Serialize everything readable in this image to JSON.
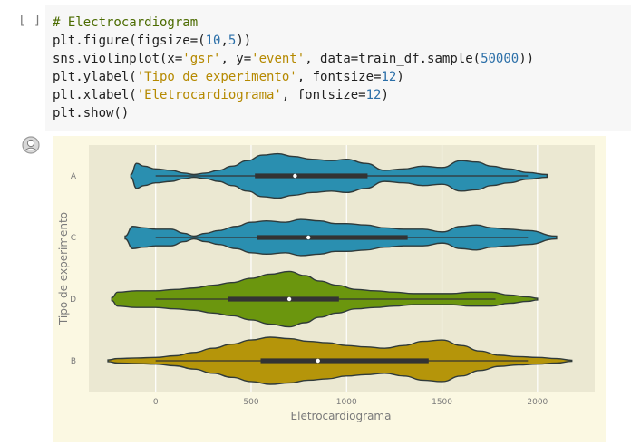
{
  "cell": {
    "prompt": "[ ]",
    "code": [
      [
        {
          "t": "# Electrocardiogram",
          "c": "cm-text"
        }
      ],
      [
        {
          "t": "plt.figure(figsize=(",
          "c": ""
        },
        {
          "t": "10",
          "c": "num2"
        },
        {
          "t": ",",
          "c": ""
        },
        {
          "t": "5",
          "c": "num2"
        },
        {
          "t": "))",
          "c": ""
        }
      ],
      [
        {
          "t": "sns.violinplot(x=",
          "c": ""
        },
        {
          "t": "'gsr'",
          "c": "str-tan"
        },
        {
          "t": ", y=",
          "c": ""
        },
        {
          "t": "'event'",
          "c": "str-tan"
        },
        {
          "t": ", data=train_df.sample(",
          "c": ""
        },
        {
          "t": "50000",
          "c": "num2"
        },
        {
          "t": "))",
          "c": ""
        }
      ],
      [
        {
          "t": "plt.ylabel(",
          "c": ""
        },
        {
          "t": "'Tipo de experimento'",
          "c": "str-tan"
        },
        {
          "t": ", fontsize=",
          "c": ""
        },
        {
          "t": "12",
          "c": "num2"
        },
        {
          "t": ")",
          "c": ""
        }
      ],
      [
        {
          "t": "plt.xlabel(",
          "c": ""
        },
        {
          "t": "'Eletrocardiograma'",
          "c": "str-tan"
        },
        {
          "t": ", fontsize=",
          "c": ""
        },
        {
          "t": "12",
          "c": "num2"
        },
        {
          "t": ")",
          "c": ""
        }
      ],
      [
        {
          "t": "plt.show()",
          "c": ""
        }
      ]
    ]
  },
  "output_icon": "output-avatar-icon",
  "chart_data": {
    "type": "violin",
    "xlabel": "Eletrocardiograma",
    "ylabel": "Tipo de experimento",
    "xlim": [
      -350,
      2300
    ],
    "xticks": [
      0,
      500,
      1000,
      1500,
      2000
    ],
    "grid": true,
    "categories": [
      "A",
      "C",
      "D",
      "B"
    ],
    "series": [
      {
        "name": "A",
        "color": "#2a8fb0",
        "whisker": [
          0,
          1950
        ],
        "q1": 520,
        "median": 730,
        "q3": 1110,
        "density": [
          [
            -130,
            0.05
          ],
          [
            -100,
            0.45
          ],
          [
            -60,
            0.35
          ],
          [
            0,
            0.25
          ],
          [
            80,
            0.2
          ],
          [
            150,
            0.1
          ],
          [
            200,
            0.05
          ],
          [
            260,
            0.1
          ],
          [
            330,
            0.2
          ],
          [
            400,
            0.35
          ],
          [
            480,
            0.55
          ],
          [
            560,
            0.75
          ],
          [
            640,
            0.8
          ],
          [
            720,
            0.7
          ],
          [
            820,
            0.6
          ],
          [
            920,
            0.55
          ],
          [
            1000,
            0.6
          ],
          [
            1100,
            0.45
          ],
          [
            1200,
            0.2
          ],
          [
            1300,
            0.25
          ],
          [
            1400,
            0.35
          ],
          [
            1500,
            0.3
          ],
          [
            1600,
            0.55
          ],
          [
            1680,
            0.5
          ],
          [
            1760,
            0.35
          ],
          [
            1850,
            0.25
          ],
          [
            1950,
            0.12
          ],
          [
            2050,
            0.05
          ]
        ]
      },
      {
        "name": "C",
        "color": "#2a8fb0",
        "whisker": [
          0,
          1950
        ],
        "q1": 530,
        "median": 800,
        "q3": 1320,
        "density": [
          [
            -160,
            0.05
          ],
          [
            -120,
            0.4
          ],
          [
            -60,
            0.35
          ],
          [
            0,
            0.3
          ],
          [
            80,
            0.3
          ],
          [
            150,
            0.15
          ],
          [
            200,
            0.05
          ],
          [
            260,
            0.15
          ],
          [
            330,
            0.25
          ],
          [
            420,
            0.4
          ],
          [
            500,
            0.55
          ],
          [
            580,
            0.6
          ],
          [
            680,
            0.55
          ],
          [
            760,
            0.65
          ],
          [
            860,
            0.6
          ],
          [
            940,
            0.5
          ],
          [
            1000,
            0.5
          ],
          [
            1100,
            0.45
          ],
          [
            1200,
            0.35
          ],
          [
            1300,
            0.3
          ],
          [
            1400,
            0.3
          ],
          [
            1500,
            0.2
          ],
          [
            1600,
            0.4
          ],
          [
            1680,
            0.45
          ],
          [
            1760,
            0.35
          ],
          [
            1850,
            0.3
          ],
          [
            1950,
            0.25
          ],
          [
            2100,
            0.05
          ]
        ]
      },
      {
        "name": "D",
        "color": "#6b960e",
        "whisker": [
          0,
          1780
        ],
        "q1": 380,
        "median": 700,
        "q3": 960,
        "density": [
          [
            -230,
            0.05
          ],
          [
            -200,
            0.25
          ],
          [
            -100,
            0.3
          ],
          [
            0,
            0.3
          ],
          [
            100,
            0.35
          ],
          [
            200,
            0.4
          ],
          [
            300,
            0.5
          ],
          [
            400,
            0.6
          ],
          [
            500,
            0.75
          ],
          [
            600,
            0.9
          ],
          [
            700,
            1.0
          ],
          [
            780,
            0.85
          ],
          [
            860,
            0.65
          ],
          [
            950,
            0.5
          ],
          [
            1050,
            0.35
          ],
          [
            1150,
            0.3
          ],
          [
            1250,
            0.25
          ],
          [
            1350,
            0.2
          ],
          [
            1450,
            0.2
          ],
          [
            1550,
            0.2
          ],
          [
            1650,
            0.25
          ],
          [
            1760,
            0.25
          ],
          [
            1850,
            0.15
          ],
          [
            1950,
            0.08
          ],
          [
            2000,
            0.03
          ]
        ]
      },
      {
        "name": "B",
        "color": "#b5950a",
        "whisker": [
          0,
          1950
        ],
        "q1": 550,
        "median": 850,
        "q3": 1430,
        "density": [
          [
            -250,
            0.03
          ],
          [
            -200,
            0.08
          ],
          [
            -100,
            0.1
          ],
          [
            0,
            0.12
          ],
          [
            100,
            0.18
          ],
          [
            200,
            0.3
          ],
          [
            300,
            0.45
          ],
          [
            400,
            0.6
          ],
          [
            500,
            0.75
          ],
          [
            600,
            0.85
          ],
          [
            700,
            0.8
          ],
          [
            800,
            0.7
          ],
          [
            900,
            0.65
          ],
          [
            1000,
            0.55
          ],
          [
            1100,
            0.5
          ],
          [
            1200,
            0.45
          ],
          [
            1300,
            0.55
          ],
          [
            1400,
            0.7
          ],
          [
            1500,
            0.75
          ],
          [
            1600,
            0.55
          ],
          [
            1700,
            0.35
          ],
          [
            1800,
            0.2
          ],
          [
            1900,
            0.15
          ],
          [
            2000,
            0.12
          ],
          [
            2100,
            0.08
          ],
          [
            2180,
            0.02
          ]
        ]
      }
    ]
  }
}
